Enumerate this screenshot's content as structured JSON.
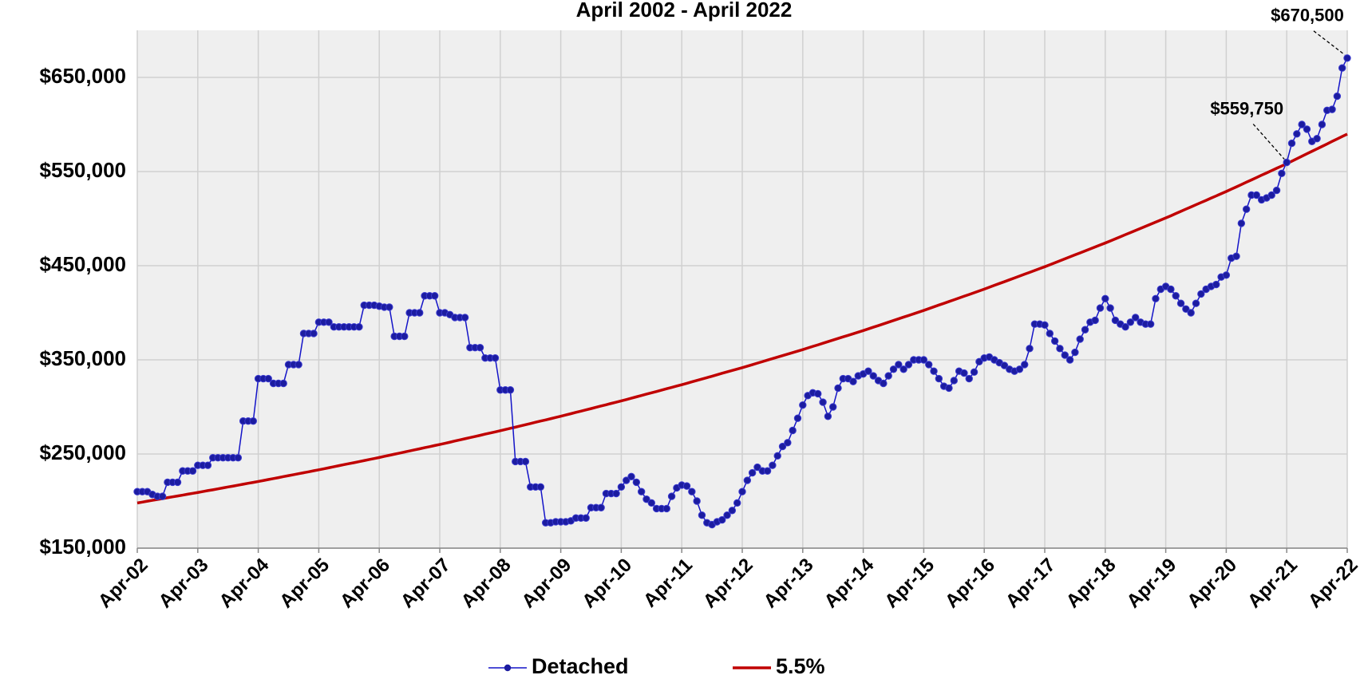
{
  "chart_data": {
    "type": "line",
    "title": "April 2002 - April 2022",
    "categories": [
      "Apr-02",
      null,
      null,
      null,
      null,
      null,
      null,
      null,
      null,
      null,
      null,
      null,
      "Apr-03",
      null,
      null,
      null,
      null,
      null,
      null,
      null,
      null,
      null,
      null,
      null,
      "Apr-04",
      null,
      null,
      null,
      null,
      null,
      null,
      null,
      null,
      null,
      null,
      null,
      "Apr-05",
      null,
      null,
      null,
      null,
      null,
      null,
      null,
      null,
      null,
      null,
      null,
      "Apr-06",
      null,
      null,
      null,
      null,
      null,
      null,
      null,
      null,
      null,
      null,
      null,
      "Apr-07",
      null,
      null,
      null,
      null,
      null,
      null,
      null,
      null,
      null,
      null,
      null,
      "Apr-08",
      null,
      null,
      null,
      null,
      null,
      null,
      null,
      null,
      null,
      null,
      null,
      "Apr-09",
      null,
      null,
      null,
      null,
      null,
      null,
      null,
      null,
      null,
      null,
      null,
      "Apr-10",
      null,
      null,
      null,
      null,
      null,
      null,
      null,
      null,
      null,
      null,
      null,
      "Apr-11",
      null,
      null,
      null,
      null,
      null,
      null,
      null,
      null,
      null,
      null,
      null,
      "Apr-12",
      null,
      null,
      null,
      null,
      null,
      null,
      null,
      null,
      null,
      null,
      null,
      "Apr-13",
      null,
      null,
      null,
      null,
      null,
      null,
      null,
      null,
      null,
      null,
      null,
      "Apr-14",
      null,
      null,
      null,
      null,
      null,
      null,
      null,
      null,
      null,
      null,
      null,
      "Apr-15",
      null,
      null,
      null,
      null,
      null,
      null,
      null,
      null,
      null,
      null,
      null,
      "Apr-16",
      null,
      null,
      null,
      null,
      null,
      null,
      null,
      null,
      null,
      null,
      null,
      "Apr-17",
      null,
      null,
      null,
      null,
      null,
      null,
      null,
      null,
      null,
      null,
      null,
      "Apr-18",
      null,
      null,
      null,
      null,
      null,
      null,
      null,
      null,
      null,
      null,
      null,
      "Apr-19",
      null,
      null,
      null,
      null,
      null,
      null,
      null,
      null,
      null,
      null,
      null,
      "Apr-20",
      null,
      null,
      null,
      null,
      null,
      null,
      null,
      null,
      null,
      null,
      null,
      "Apr-21",
      null,
      null,
      null,
      null,
      null,
      null,
      null,
      null,
      null,
      null,
      null,
      "Apr-22"
    ],
    "series": [
      {
        "name": "Detached",
        "color": "#1414c8",
        "marker_color": "#1c1ca0",
        "values": [
          210000,
          210000,
          210000,
          207000,
          205000,
          205000,
          220000,
          220000,
          220000,
          232000,
          232000,
          232000,
          238000,
          238000,
          238000,
          246000,
          246000,
          246000,
          246000,
          246000,
          246000,
          285000,
          285000,
          285000,
          330000,
          330000,
          330000,
          325000,
          325000,
          325000,
          345000,
          345000,
          345000,
          378000,
          378000,
          378000,
          390000,
          390000,
          390000,
          385000,
          385000,
          385000,
          385000,
          385000,
          385000,
          408000,
          408000,
          408000,
          407000,
          406000,
          406000,
          375000,
          375000,
          375000,
          400000,
          400000,
          400000,
          418000,
          418000,
          418000,
          400000,
          400000,
          398000,
          395000,
          395000,
          395000,
          363000,
          363000,
          363000,
          352000,
          352000,
          352000,
          318000,
          318000,
          318000,
          242000,
          242000,
          242000,
          215000,
          215000,
          215000,
          177000,
          177000,
          178000,
          178000,
          178000,
          179000,
          182000,
          182000,
          182000,
          193000,
          193000,
          193000,
          208000,
          208000,
          208000,
          215000,
          222000,
          226000,
          220000,
          210000,
          202000,
          198000,
          192000,
          192000,
          192000,
          205000,
          214000,
          217000,
          216000,
          210000,
          200000,
          185000,
          177000,
          175000,
          178000,
          180000,
          185000,
          190000,
          198000,
          210000,
          222000,
          230000,
          236000,
          232000,
          232000,
          238000,
          248000,
          258000,
          262000,
          275000,
          288000,
          302000,
          312000,
          315000,
          314000,
          305000,
          290000,
          300000,
          320000,
          330000,
          330000,
          327000,
          333000,
          335000,
          338000,
          333000,
          328000,
          325000,
          333000,
          340000,
          345000,
          340000,
          345000,
          350000,
          350000,
          350000,
          345000,
          338000,
          330000,
          322000,
          320000,
          328000,
          338000,
          336000,
          330000,
          337000,
          348000,
          352000,
          353000,
          350000,
          347000,
          344000,
          340000,
          338000,
          340000,
          345000,
          362000,
          388000,
          388000,
          387000,
          378000,
          370000,
          362000,
          355000,
          350000,
          358000,
          372000,
          382000,
          390000,
          392000,
          405000,
          415000,
          405000,
          392000,
          388000,
          385000,
          390000,
          395000,
          390000,
          388000,
          388000,
          415000,
          425000,
          428000,
          425000,
          418000,
          410000,
          404000,
          400000,
          410000,
          420000,
          425000,
          428000,
          430000,
          438000,
          440000,
          458000,
          460000,
          495000,
          510000,
          525000,
          525000,
          520000,
          522000,
          525000,
          530000,
          548000,
          559750,
          580000,
          590000,
          600000,
          595000,
          582000,
          585000,
          600000,
          615000,
          616000,
          630000,
          660000,
          670500
        ],
        "value_labels": [
          null,
          null,
          null,
          null,
          null,
          null,
          null,
          null,
          null,
          null,
          null,
          null,
          null,
          null,
          null,
          null,
          null,
          null,
          null,
          null,
          null,
          null,
          null,
          null,
          null,
          null,
          null,
          null,
          null,
          null,
          null,
          null,
          null,
          null,
          null,
          null,
          null,
          null,
          null,
          null,
          null,
          null,
          null,
          null,
          null,
          null,
          null,
          null,
          null,
          null,
          null,
          null,
          null,
          null,
          null,
          null,
          null,
          null,
          null,
          null,
          null,
          null,
          null,
          null,
          null,
          null,
          null,
          null,
          null,
          null,
          null,
          null,
          null,
          null,
          null,
          null,
          null,
          null,
          null,
          null,
          null,
          null,
          null,
          null,
          null,
          null,
          null,
          null,
          null,
          null,
          null,
          null,
          null,
          null,
          null,
          null,
          null,
          null,
          null,
          null,
          null,
          null,
          null,
          null,
          null,
          null,
          null,
          null,
          null,
          null,
          null,
          null,
          null,
          null,
          null,
          null,
          null,
          null,
          null,
          null,
          null,
          null,
          null,
          null,
          null,
          null,
          null,
          null,
          null,
          null,
          null,
          null,
          null,
          null,
          null,
          null,
          null,
          null,
          null,
          null,
          null,
          null,
          null,
          null,
          null,
          null,
          null,
          null,
          null,
          null,
          null,
          null,
          null,
          null,
          null,
          null,
          null,
          null,
          null,
          null,
          null,
          null,
          null,
          null,
          null,
          null,
          null,
          null,
          null,
          null,
          null,
          null,
          null,
          null,
          null,
          null,
          null,
          null,
          null,
          null,
          null,
          null,
          null,
          null,
          null,
          null,
          null,
          null,
          null,
          null,
          null,
          null,
          null,
          null,
          null,
          null,
          null,
          null,
          null,
          null,
          null,
          null,
          null,
          null,
          null,
          null,
          null,
          null,
          null,
          null,
          null,
          null,
          null,
          null,
          null,
          null,
          null,
          null,
          null,
          null,
          null,
          null,
          null,
          null,
          null,
          null,
          null,
          null,
          "$559,750",
          null,
          null,
          null,
          null,
          null,
          null,
          null,
          null,
          null,
          null,
          null,
          "$670,500"
        ]
      },
      {
        "name": "5.5%",
        "color": "#c00000",
        "values": [
          198000,
          198900,
          199900,
          200800,
          201700,
          202600,
          203600,
          204500,
          205400,
          206300,
          207300,
          208200,
          209100,
          210100,
          211100,
          212000,
          213000,
          214000,
          215000,
          215900,
          216900,
          217900,
          218900,
          219800,
          220800,
          221800,
          222900,
          223900,
          224900,
          226000,
          227000,
          228000,
          229100,
          230100,
          231100,
          232200,
          233200,
          234300,
          235400,
          236500,
          237600,
          238700,
          239800,
          240800,
          241900,
          243000,
          244100,
          245200,
          246300,
          247500,
          248600,
          249800,
          250900,
          252100,
          253200,
          254400,
          255500,
          256700,
          257800,
          259000,
          260100,
          261300,
          262500,
          263800,
          265000,
          266200,
          267400,
          268600,
          269800,
          271100,
          272300,
          273500,
          274700,
          276000,
          277300,
          278500,
          279800,
          281100,
          282400,
          283700,
          285000,
          286200,
          287500,
          288800,
          290100,
          291500,
          292800,
          294200,
          295500,
          296900,
          298200,
          299600,
          301000,
          302300,
          303700,
          305000,
          306400,
          307800,
          309300,
          310700,
          312100,
          313600,
          315000,
          316400,
          317900,
          319300,
          320700,
          322200,
          323600,
          325100,
          326600,
          328100,
          329600,
          331100,
          332600,
          334200,
          335700,
          337200,
          338700,
          340200,
          341700,
          343300,
          344900,
          346500,
          348100,
          349700,
          351300,
          352900,
          354500,
          356100,
          357700,
          359300,
          360900,
          362600,
          364300,
          365900,
          367600,
          369300,
          371000,
          372700,
          374400,
          376000,
          377700,
          379400,
          381100,
          382900,
          384700,
          386400,
          388200,
          390000,
          391800,
          393600,
          395400,
          397100,
          398900,
          400700,
          402500,
          404400,
          406300,
          408200,
          410000,
          411900,
          413800,
          415700,
          417600,
          419400,
          421300,
          423200,
          425100,
          427100,
          429100,
          431100,
          433000,
          435000,
          437000,
          439000,
          441000,
          442900,
          444900,
          446900,
          448900,
          451000,
          453100,
          455200,
          457300,
          459400,
          461500,
          463600,
          465700,
          467800,
          469900,
          472000,
          474100,
          476300,
          478500,
          480700,
          483000,
          485200,
          487400,
          489600,
          491800,
          494100,
          496300,
          498500,
          500700,
          503000,
          505400,
          507700,
          510100,
          512400,
          514800,
          517100,
          519400,
          521800,
          524100,
          526500,
          528800,
          531300,
          533700,
          536200,
          538700,
          541100,
          543600,
          546100,
          548500,
          551000,
          553500,
          555900,
          558400,
          561000,
          563600,
          566300,
          568900,
          571500,
          574100,
          576700,
          579300,
          582000,
          584600,
          587200,
          589800
        ]
      }
    ],
    "ylim": [
      150000,
      700000
    ],
    "yticks": [
      {
        "value": 150000,
        "label": "$150,000"
      },
      {
        "value": 250000,
        "label": "$250,000"
      },
      {
        "value": 350000,
        "label": "$350,000"
      },
      {
        "value": 450000,
        "label": "$450,000"
      },
      {
        "value": 550000,
        "label": "$550,000"
      },
      {
        "value": 650000,
        "label": "$650,000"
      }
    ],
    "grid": true,
    "legend": "bottom"
  }
}
